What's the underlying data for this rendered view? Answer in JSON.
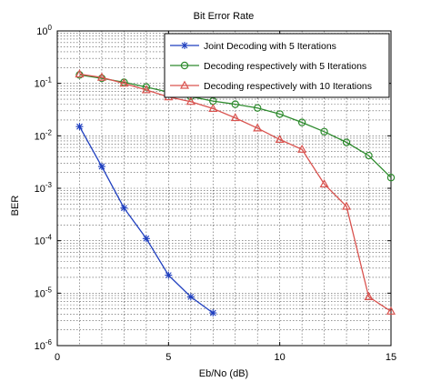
{
  "chart_data": {
    "type": "line",
    "title": "Bit Error Rate",
    "xlabel": "Eb/No (dB)",
    "ylabel": "BER",
    "xlim": [
      0,
      15
    ],
    "ylim_exponents": [
      -6,
      0
    ],
    "yscale": "log",
    "grid": true,
    "legend_position": "top-right",
    "x_ticks": [
      {
        "value": 0,
        "label": "0"
      },
      {
        "value": 5,
        "label": "5"
      },
      {
        "value": 10,
        "label": "10"
      },
      {
        "value": 15,
        "label": "15"
      }
    ],
    "y_ticks": [
      {
        "exp": 0,
        "base": "10",
        "sup": "0"
      },
      {
        "exp": -1,
        "base": "10",
        "sup": "-1"
      },
      {
        "exp": -2,
        "base": "10",
        "sup": "-2"
      },
      {
        "exp": -3,
        "base": "10",
        "sup": "-3"
      },
      {
        "exp": -4,
        "base": "10",
        "sup": "-4"
      },
      {
        "exp": -5,
        "base": "10",
        "sup": "-5"
      },
      {
        "exp": -6,
        "base": "10",
        "sup": "-6"
      }
    ],
    "series": [
      {
        "name": "Joint Decoding with 5 Iterations",
        "color": "#1f3fbf",
        "marker": "star",
        "x": [
          1,
          2,
          3,
          4,
          5,
          6,
          7
        ],
        "y": [
          0.015,
          0.0026,
          0.00042,
          0.00011,
          2.2e-05,
          8.5e-06,
          4.2e-06
        ]
      },
      {
        "name": "Decoding respectively with 5 Iterations",
        "color": "#2e8b2e",
        "marker": "circle",
        "x": [
          1,
          2,
          3,
          4,
          5,
          6,
          7,
          8,
          9,
          10,
          11,
          12,
          13,
          14,
          15
        ],
        "y": [
          0.145,
          0.125,
          0.105,
          0.085,
          0.068,
          0.056,
          0.046,
          0.04,
          0.034,
          0.026,
          0.018,
          0.012,
          0.0075,
          0.0042,
          0.0016
        ]
      },
      {
        "name": "Decoding respectively with 10 Iterations",
        "color": "#d9534f",
        "marker": "triangle",
        "x": [
          1,
          2,
          3,
          4,
          5,
          6,
          7,
          8,
          9,
          10,
          11,
          12,
          13,
          14,
          15
        ],
        "y": [
          0.15,
          0.13,
          0.1,
          0.075,
          0.055,
          0.045,
          0.033,
          0.022,
          0.014,
          0.0085,
          0.0055,
          0.0012,
          0.00045,
          8.5e-06,
          4.5e-06
        ]
      }
    ]
  }
}
